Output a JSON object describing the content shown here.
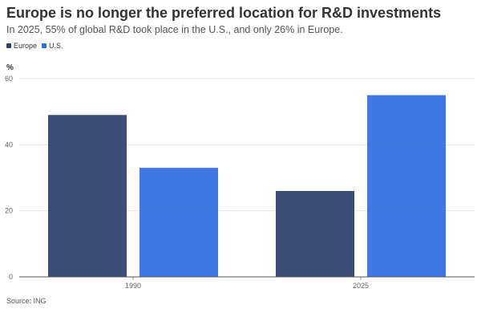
{
  "title": "Europe is no longer the preferred location for R&D investments",
  "subtitle": "In 2025, 55% of global R&D took place in the U.S., and only 26% in Europe.",
  "unit_label": "%",
  "source": "Source: ING",
  "legend": [
    {
      "name": "Europe",
      "color": "#2b3f6b"
    },
    {
      "name": "U.S.",
      "color": "#2f6ce0"
    }
  ],
  "chart_data": {
    "type": "bar",
    "categories": [
      "1990",
      "2025"
    ],
    "series": [
      {
        "name": "Europe",
        "values": [
          49,
          26
        ],
        "color": "#2b3f6b"
      },
      {
        "name": "U.S.",
        "values": [
          33,
          55
        ],
        "color": "#2f6ce0"
      }
    ],
    "ylim": [
      0,
      60
    ],
    "yticks": [
      0,
      20,
      40,
      60
    ],
    "grid": true,
    "legend_position": "top-left"
  }
}
